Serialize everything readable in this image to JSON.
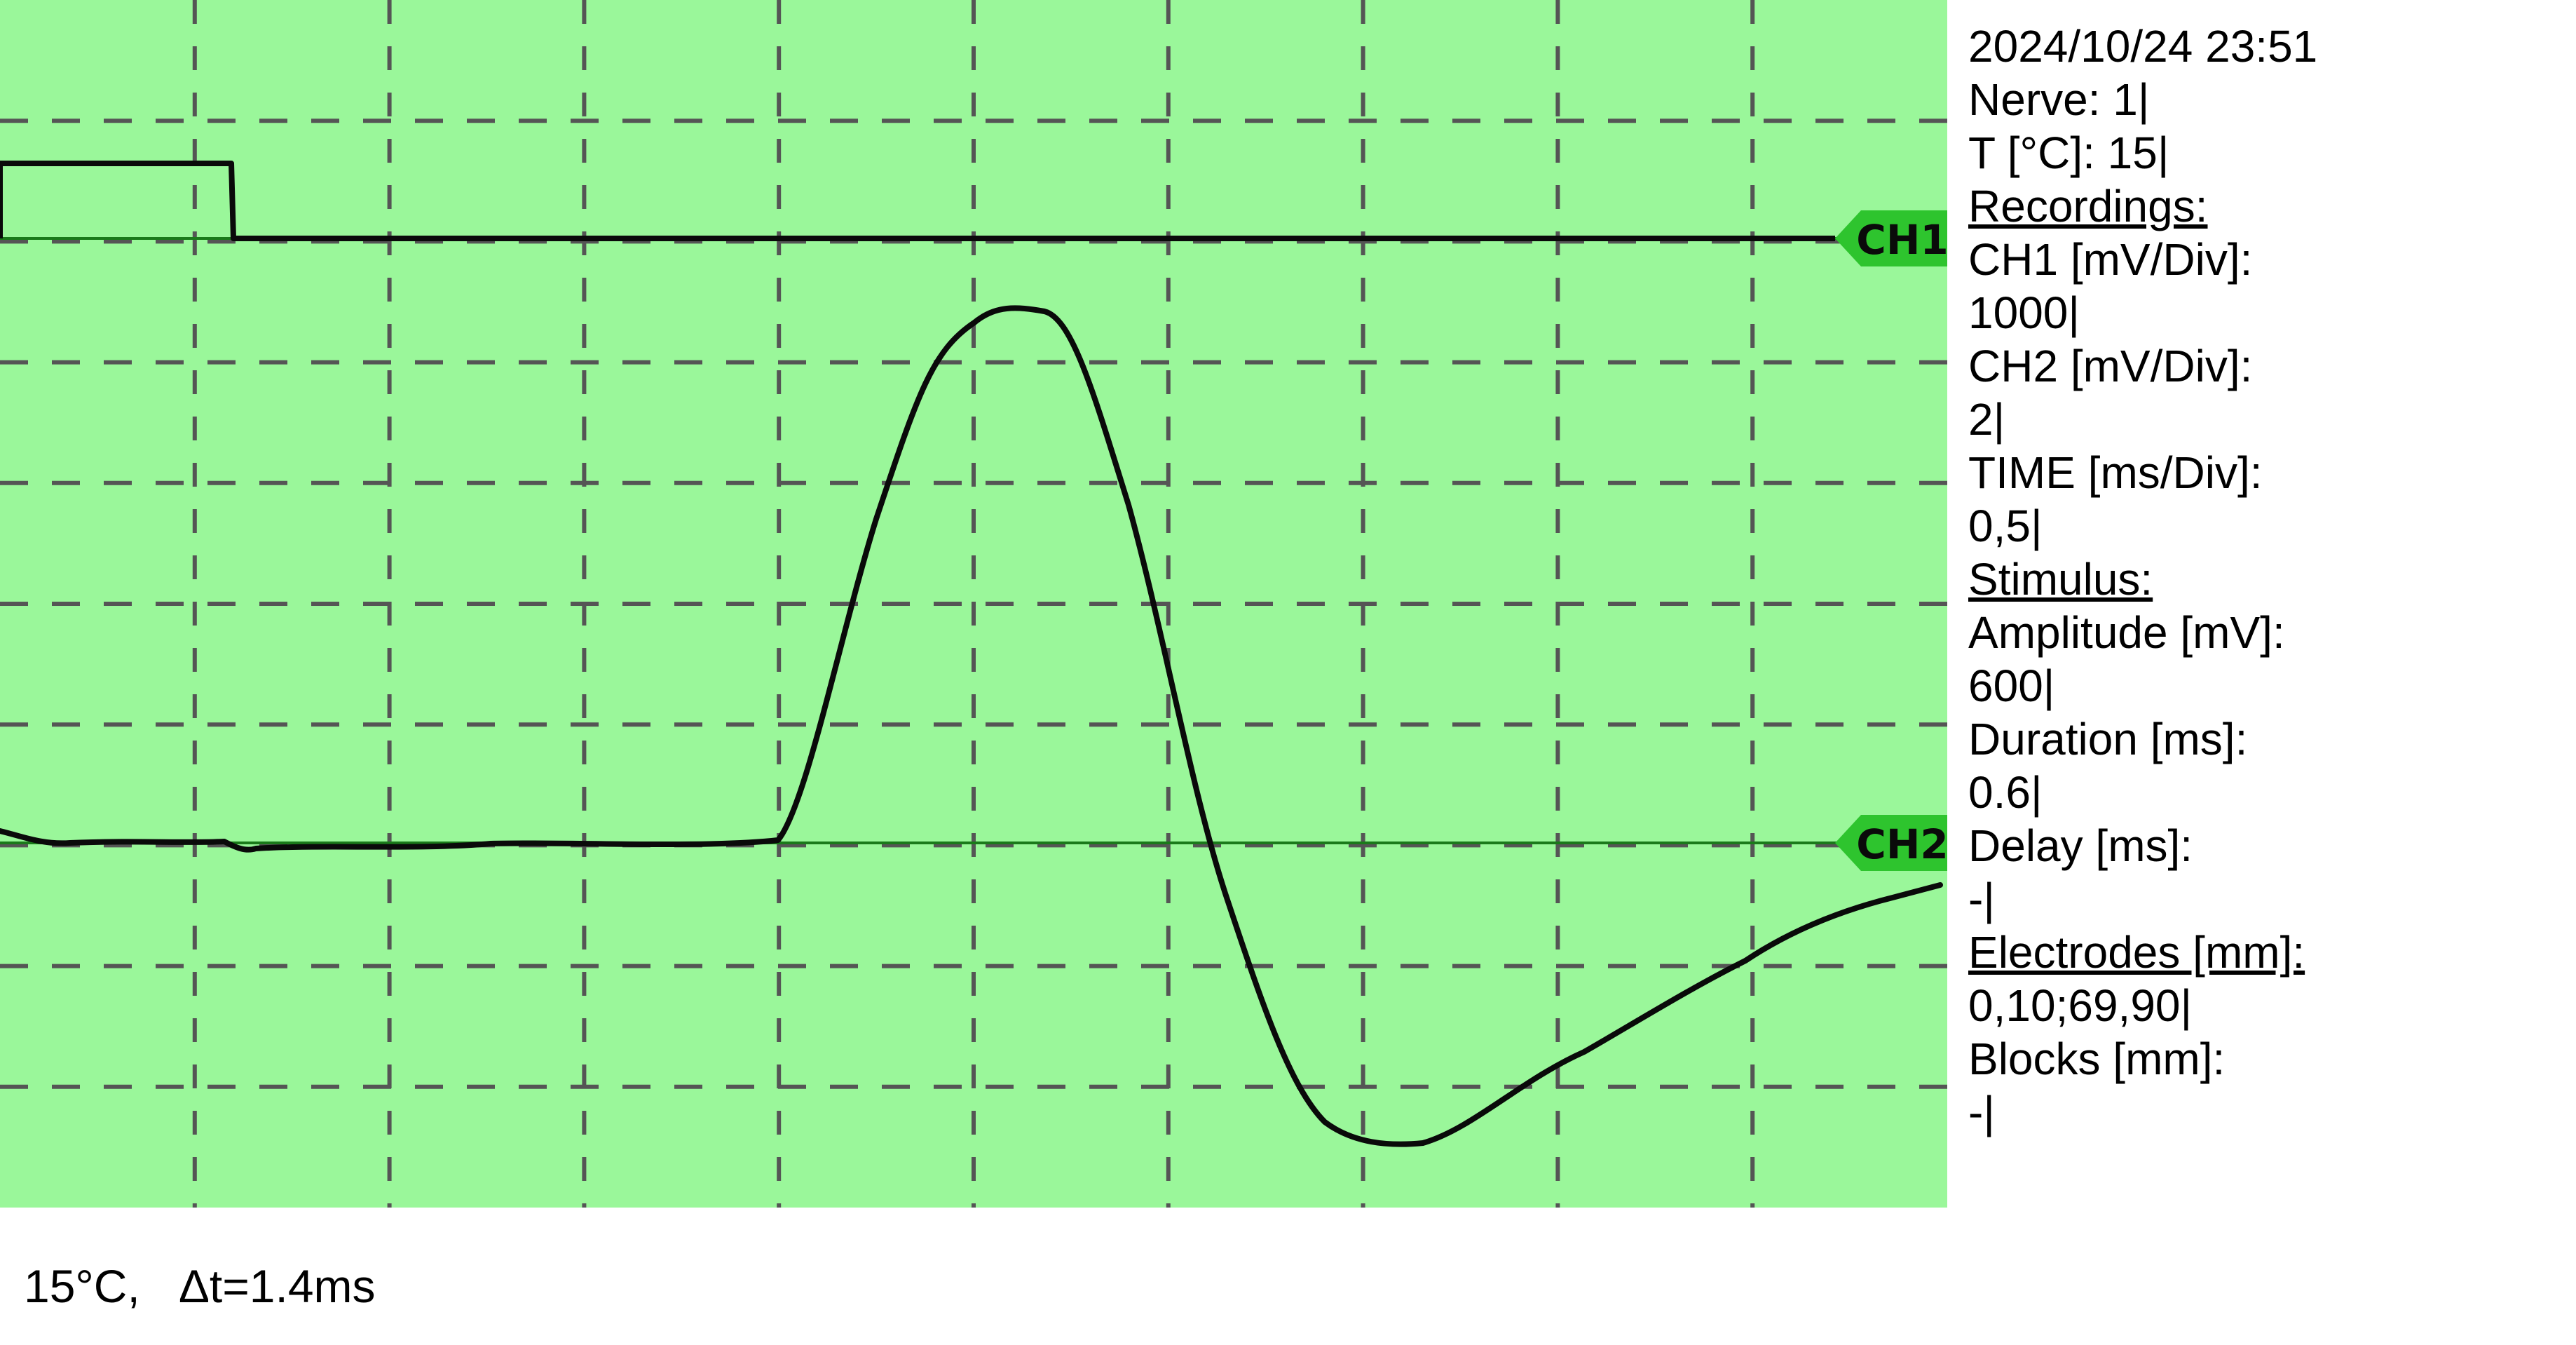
{
  "scope": {
    "background": "#9af79a",
    "grid_color": "#555555",
    "trace_color": "#0a0a0a",
    "baseline_color": "#1a7a1a",
    "tag_color": "#2ec42e",
    "ch1_tag": "CH1",
    "ch2_tag": "CH2"
  },
  "info": {
    "datetime": "2024/10/24   23:51",
    "nerve": "Nerve: 1|",
    "temperature": "T [°C]: 15|",
    "recordings_heading": "Recordings:",
    "ch1_label": "CH1 [mV/Div]:",
    "ch1_value": "1000|",
    "ch2_label": "CH2 [mV/Div]:",
    "ch2_value": "2|",
    "time_label": "TIME [ms/Div]:",
    "time_value": "0,5|",
    "stimulus_heading": "Stimulus:",
    "amplitude_label": "Amplitude [mV]:",
    "amplitude_value": "600|",
    "duration_label": "Duration [ms]:",
    "duration_value": "0.6|",
    "delay_label": "Delay [ms]:",
    "delay_value": "-|",
    "electrodes_heading": "Electrodes [mm]:",
    "electrodes_value": "0,10;69,90|",
    "blocks_label": "Blocks [mm]:",
    "blocks_value": "-|"
  },
  "footer": {
    "temperature": "15°C,",
    "delta_t": "Δt=1.4ms"
  }
}
